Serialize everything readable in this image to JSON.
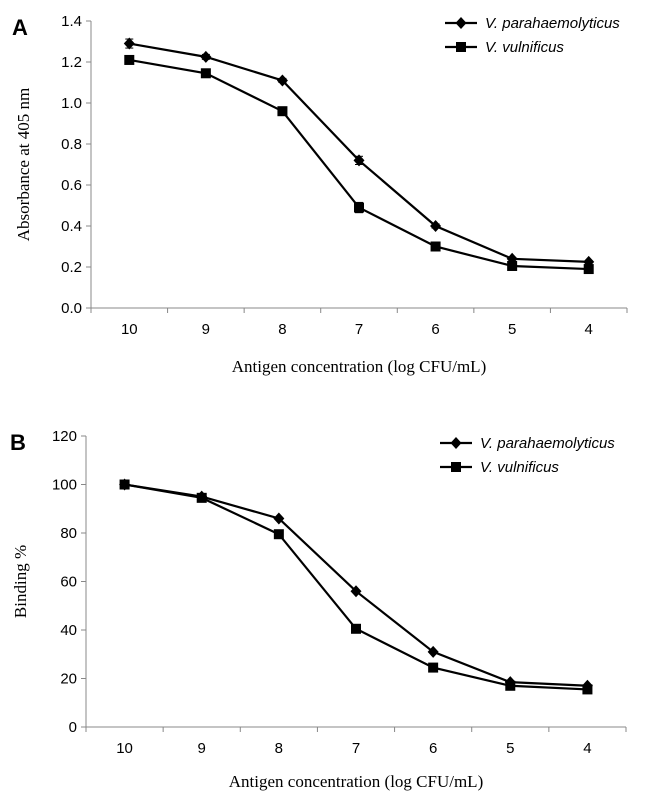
{
  "chart_data": [
    {
      "type": "line",
      "panel_label": "A",
      "xlabel": "Antigen concentration (log CFU/mL)",
      "ylabel": "Absorbance at 405 nm",
      "categories": [
        "10",
        "9",
        "8",
        "7",
        "6",
        "5",
        "4"
      ],
      "ylim": [
        0,
        1.4
      ],
      "yticks": [
        "0.0",
        "0.2",
        "0.4",
        "0.6",
        "0.8",
        "1.0",
        "1.2",
        "1.4"
      ],
      "grid": false,
      "legend_position": "top-right",
      "series": [
        {
          "name": "V. parahaemolyticus",
          "marker": "diamond",
          "color": "#000000",
          "values": [
            1.29,
            1.225,
            1.11,
            0.72,
            0.4,
            0.24,
            0.225
          ],
          "errors": [
            0.022,
            0.012,
            0.01,
            0.02,
            0.01,
            0.005,
            0.005
          ]
        },
        {
          "name": "V. vulnificus",
          "marker": "square",
          "color": "#000000",
          "values": [
            1.21,
            1.145,
            0.96,
            0.49,
            0.3,
            0.205,
            0.19
          ],
          "errors": [
            0.01,
            0.01,
            0.01,
            0.025,
            0.01,
            0.005,
            0.005
          ]
        }
      ]
    },
    {
      "type": "line",
      "panel_label": "B",
      "xlabel": "Antigen concentration (log CFU/mL)",
      "ylabel": "Binding  %",
      "categories": [
        "10",
        "9",
        "8",
        "7",
        "6",
        "5",
        "4"
      ],
      "ylim": [
        0,
        120
      ],
      "yticks": [
        "0",
        "20",
        "40",
        "60",
        "80",
        "100",
        "120"
      ],
      "grid": false,
      "legend_position": "top-right",
      "series": [
        {
          "name": "V. parahaemolyticus",
          "marker": "diamond",
          "color": "#000000",
          "values": [
            100,
            95,
            86,
            56,
            31,
            18.5,
            17
          ]
        },
        {
          "name": "V. vulnificus",
          "marker": "square",
          "color": "#000000",
          "values": [
            100,
            94.5,
            79.5,
            40.5,
            24.5,
            17,
            15.5
          ]
        }
      ]
    }
  ]
}
